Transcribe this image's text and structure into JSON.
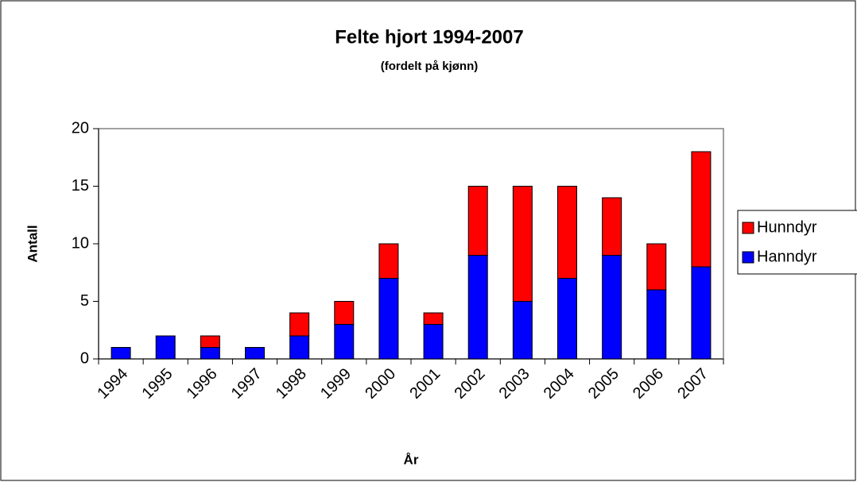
{
  "chart_data": {
    "type": "stacked_bar",
    "title": "Felte hjort 1994-2007",
    "subtitle": "(fordelt på kjønn)",
    "x_label": "År",
    "y_label": "Antall",
    "categories": [
      "1994",
      "1995",
      "1996",
      "1997",
      "1998",
      "1999",
      "2000",
      "2001",
      "2002",
      "2003",
      "2004",
      "2005",
      "2006",
      "2007"
    ],
    "series": [
      {
        "name": "Hanndyr",
        "color": "#0000ff",
        "values": [
          1,
          2,
          1,
          1,
          2,
          3,
          7,
          3,
          9,
          5,
          7,
          9,
          6,
          8
        ]
      },
      {
        "name": "Hunndyr",
        "color": "#ff0000",
        "values": [
          0,
          0,
          1,
          0,
          2,
          2,
          3,
          1,
          6,
          10,
          8,
          5,
          4,
          10
        ]
      }
    ],
    "ylim": [
      0,
      20
    ],
    "yticks": [
      0,
      5,
      10,
      15,
      20
    ],
    "grid": false,
    "legend": "right"
  }
}
